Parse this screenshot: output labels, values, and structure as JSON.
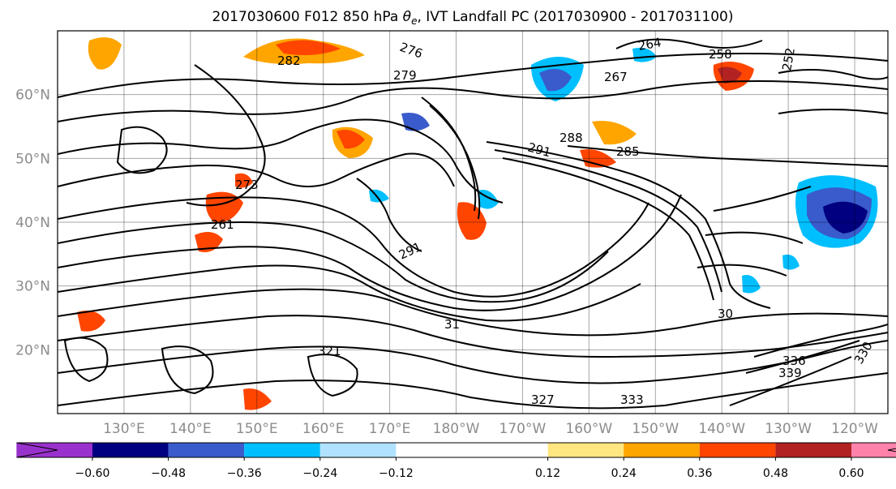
{
  "title": "2017030600 F012 850 hPa θe, IVT Landfall PC (2017030900 - 2017031100)",
  "title_parts": {
    "prefix": "2017030600 F012 850 hPa ",
    "theta": "θ",
    "theta_sub": "e",
    "suffix": ", IVT Landfall PC (2017030900 - 2017031100)"
  },
  "map": {
    "lat_labels": [
      "60°N",
      "50°N",
      "40°N",
      "30°N",
      "20°N"
    ],
    "lat_values": [
      60,
      50,
      40,
      30,
      20
    ],
    "lat_range": [
      10,
      70
    ],
    "lon_labels": [
      "130°E",
      "140°E",
      "150°E",
      "160°E",
      "170°E",
      "180°W",
      "170°W",
      "160°W",
      "150°W",
      "140°W",
      "130°W",
      "120°W"
    ],
    "lon_values": [
      130,
      140,
      150,
      160,
      170,
      180,
      190,
      200,
      210,
      220,
      230,
      240
    ],
    "lon_range": [
      120,
      245
    ],
    "gridlines": true,
    "contour_labels": [
      "276",
      "264",
      "258",
      "252",
      "282",
      "279",
      "267",
      "291",
      "288",
      "285",
      "273",
      "261",
      "291",
      "30",
      "31",
      "339",
      "336",
      "333",
      "330",
      "321",
      "327"
    ]
  },
  "colorbar": {
    "tick_labels": [
      "−0.60",
      "−0.48",
      "−0.36",
      "−0.24",
      "−0.12",
      "0.12",
      "0.24",
      "0.36",
      "0.48",
      "0.60"
    ],
    "ticks": [
      -0.6,
      -0.48,
      -0.36,
      -0.24,
      -0.12,
      0.12,
      0.24,
      0.36,
      0.48,
      0.6
    ],
    "under_color": "#9932CC",
    "over_color": "#FF82AB",
    "bin_colors": [
      "#000080",
      "#3A5BCB",
      "#00BFFF",
      "#B0E2FF",
      "#FFFFFF",
      "#FFE680",
      "#FFA500",
      "#FF4500",
      "#B22222"
    ]
  }
}
